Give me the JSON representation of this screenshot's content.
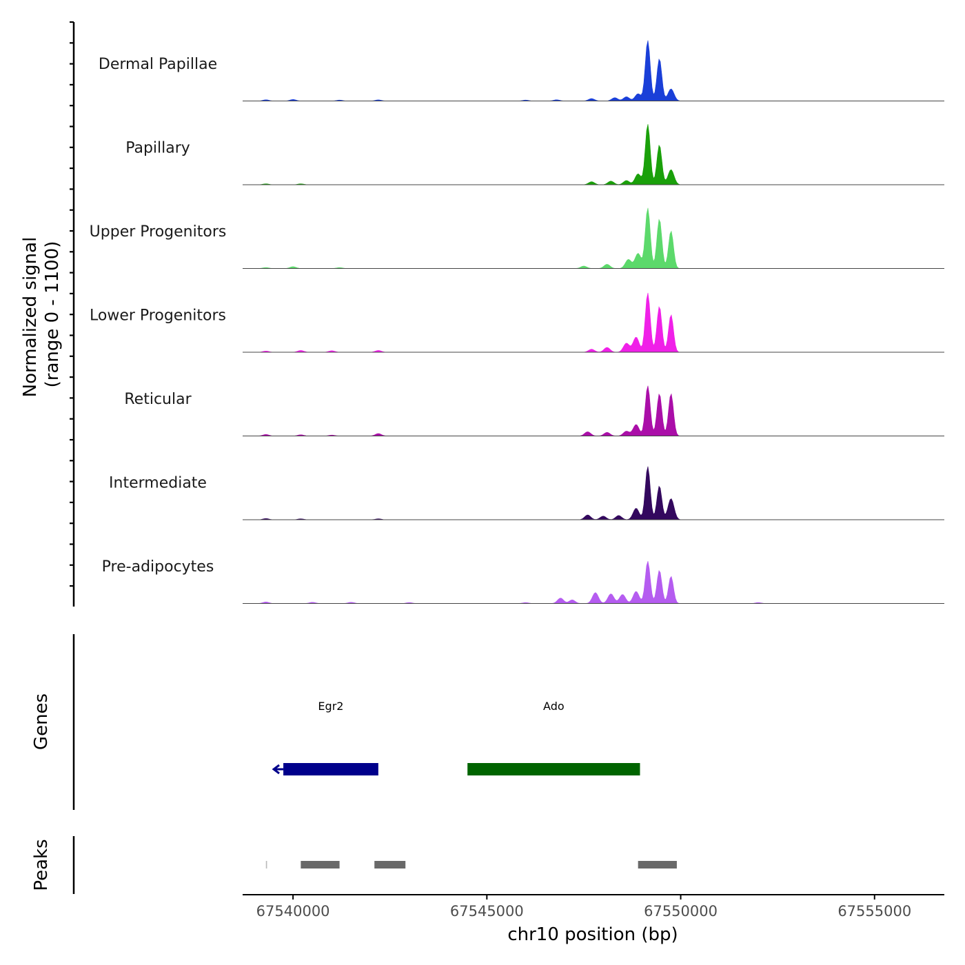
{
  "chart_data": {
    "type": "area",
    "title": "",
    "chromosome": "chr10",
    "xlabel": "chr10 position (bp)",
    "ylabel_line1": "Normalized signal",
    "ylabel_line2": "(range 0 - 1100)",
    "ylim": [
      0,
      1100
    ],
    "xlim": [
      67538700,
      67556800
    ],
    "x_ticks": [
      67540000,
      67545000,
      67550000,
      67555000
    ],
    "x_tick_labels": [
      "67540000",
      "67545000",
      "67550000",
      "67555000"
    ],
    "tracks": [
      {
        "name": "Dermal Papillae",
        "color": "#1a3fd8",
        "peaks": [
          [
            67539300,
            20
          ],
          [
            67540000,
            25
          ],
          [
            67541200,
            15
          ],
          [
            67542200,
            18
          ],
          [
            67546000,
            15
          ],
          [
            67546800,
            20
          ],
          [
            67547700,
            40
          ],
          [
            67548300,
            55
          ],
          [
            67548600,
            70
          ],
          [
            67548900,
            120
          ],
          [
            67549150,
            1000
          ],
          [
            67549450,
            700
          ],
          [
            67549750,
            200
          ]
        ]
      },
      {
        "name": "Papillary",
        "color": "#1aa00a",
        "peaks": [
          [
            67539300,
            15
          ],
          [
            67540200,
            15
          ],
          [
            67547700,
            50
          ],
          [
            67548200,
            60
          ],
          [
            67548600,
            70
          ],
          [
            67548900,
            180
          ],
          [
            67549150,
            1000
          ],
          [
            67549450,
            660
          ],
          [
            67549750,
            250
          ]
        ]
      },
      {
        "name": "Upper Progenitors",
        "color": "#5cd96b",
        "peaks": [
          [
            67539300,
            15
          ],
          [
            67540000,
            30
          ],
          [
            67541200,
            15
          ],
          [
            67547500,
            40
          ],
          [
            67548100,
            70
          ],
          [
            67548650,
            150
          ],
          [
            67548900,
            250
          ],
          [
            67549150,
            1000
          ],
          [
            67549450,
            820
          ],
          [
            67549750,
            620
          ]
        ]
      },
      {
        "name": "Lower Progenitors",
        "color": "#f020e8",
        "peaks": [
          [
            67539300,
            20
          ],
          [
            67540200,
            30
          ],
          [
            67541000,
            25
          ],
          [
            67542200,
            30
          ],
          [
            67547700,
            50
          ],
          [
            67548100,
            80
          ],
          [
            67548600,
            150
          ],
          [
            67548850,
            250
          ],
          [
            67549150,
            980
          ],
          [
            67549450,
            760
          ],
          [
            67549750,
            620
          ]
        ]
      },
      {
        "name": "Reticular",
        "color": "#aa0ea8",
        "peaks": [
          [
            67539300,
            25
          ],
          [
            67540200,
            20
          ],
          [
            67541000,
            15
          ],
          [
            67542200,
            40
          ],
          [
            67547600,
            70
          ],
          [
            67548100,
            60
          ],
          [
            67548600,
            80
          ],
          [
            67548850,
            190
          ],
          [
            67549150,
            830
          ],
          [
            67549450,
            700
          ],
          [
            67549750,
            700
          ]
        ]
      },
      {
        "name": "Intermediate",
        "color": "#33085e",
        "peaks": [
          [
            67539300,
            20
          ],
          [
            67540200,
            15
          ],
          [
            67542200,
            15
          ],
          [
            67547600,
            80
          ],
          [
            67548000,
            60
          ],
          [
            67548400,
            70
          ],
          [
            67548850,
            190
          ],
          [
            67549150,
            880
          ],
          [
            67549450,
            560
          ],
          [
            67549750,
            350
          ]
        ]
      },
      {
        "name": "Pre-adipocytes",
        "color": "#b55cf0",
        "peaks": [
          [
            67539300,
            25
          ],
          [
            67540500,
            20
          ],
          [
            67541500,
            20
          ],
          [
            67543000,
            15
          ],
          [
            67546000,
            15
          ],
          [
            67546900,
            90
          ],
          [
            67547200,
            60
          ],
          [
            67547800,
            180
          ],
          [
            67548200,
            160
          ],
          [
            67548500,
            150
          ],
          [
            67548850,
            200
          ],
          [
            67549150,
            700
          ],
          [
            67549450,
            550
          ],
          [
            67549750,
            450
          ],
          [
            67552000,
            15
          ]
        ]
      }
    ],
    "genes": [
      {
        "name": "Egr2",
        "color": "#00008b",
        "start": 67539750,
        "end": 67542200,
        "strand": "-"
      },
      {
        "name": "Ado",
        "color": "#006400",
        "start": 67544500,
        "end": 67548950,
        "strand": "+"
      }
    ],
    "genes_label": "Genes",
    "peaks_label": "Peaks",
    "peak_regions": [
      [
        67539300,
        67539330
      ],
      [
        67540200,
        67541200
      ],
      [
        67542100,
        67542900
      ],
      [
        67548900,
        67549900
      ]
    ]
  }
}
